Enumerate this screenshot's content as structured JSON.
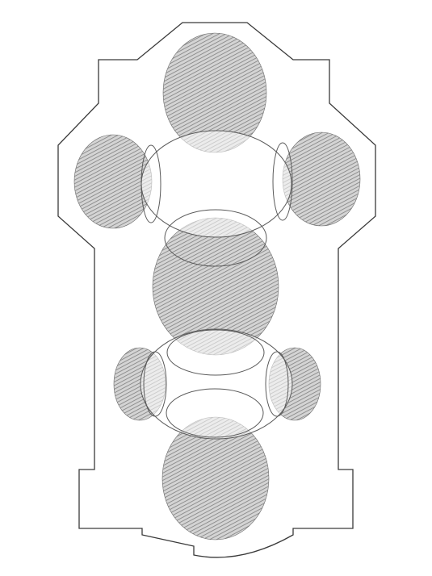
{
  "figure": {
    "kind": "architectural floor plan sketch",
    "style": "pencil hatching",
    "ink_color": "#3a3a3a",
    "shading_color": "#8a8a8a",
    "background_color": "#ffffff"
  },
  "vaults": {
    "shaded_count": 7,
    "ring_count": 5
  }
}
